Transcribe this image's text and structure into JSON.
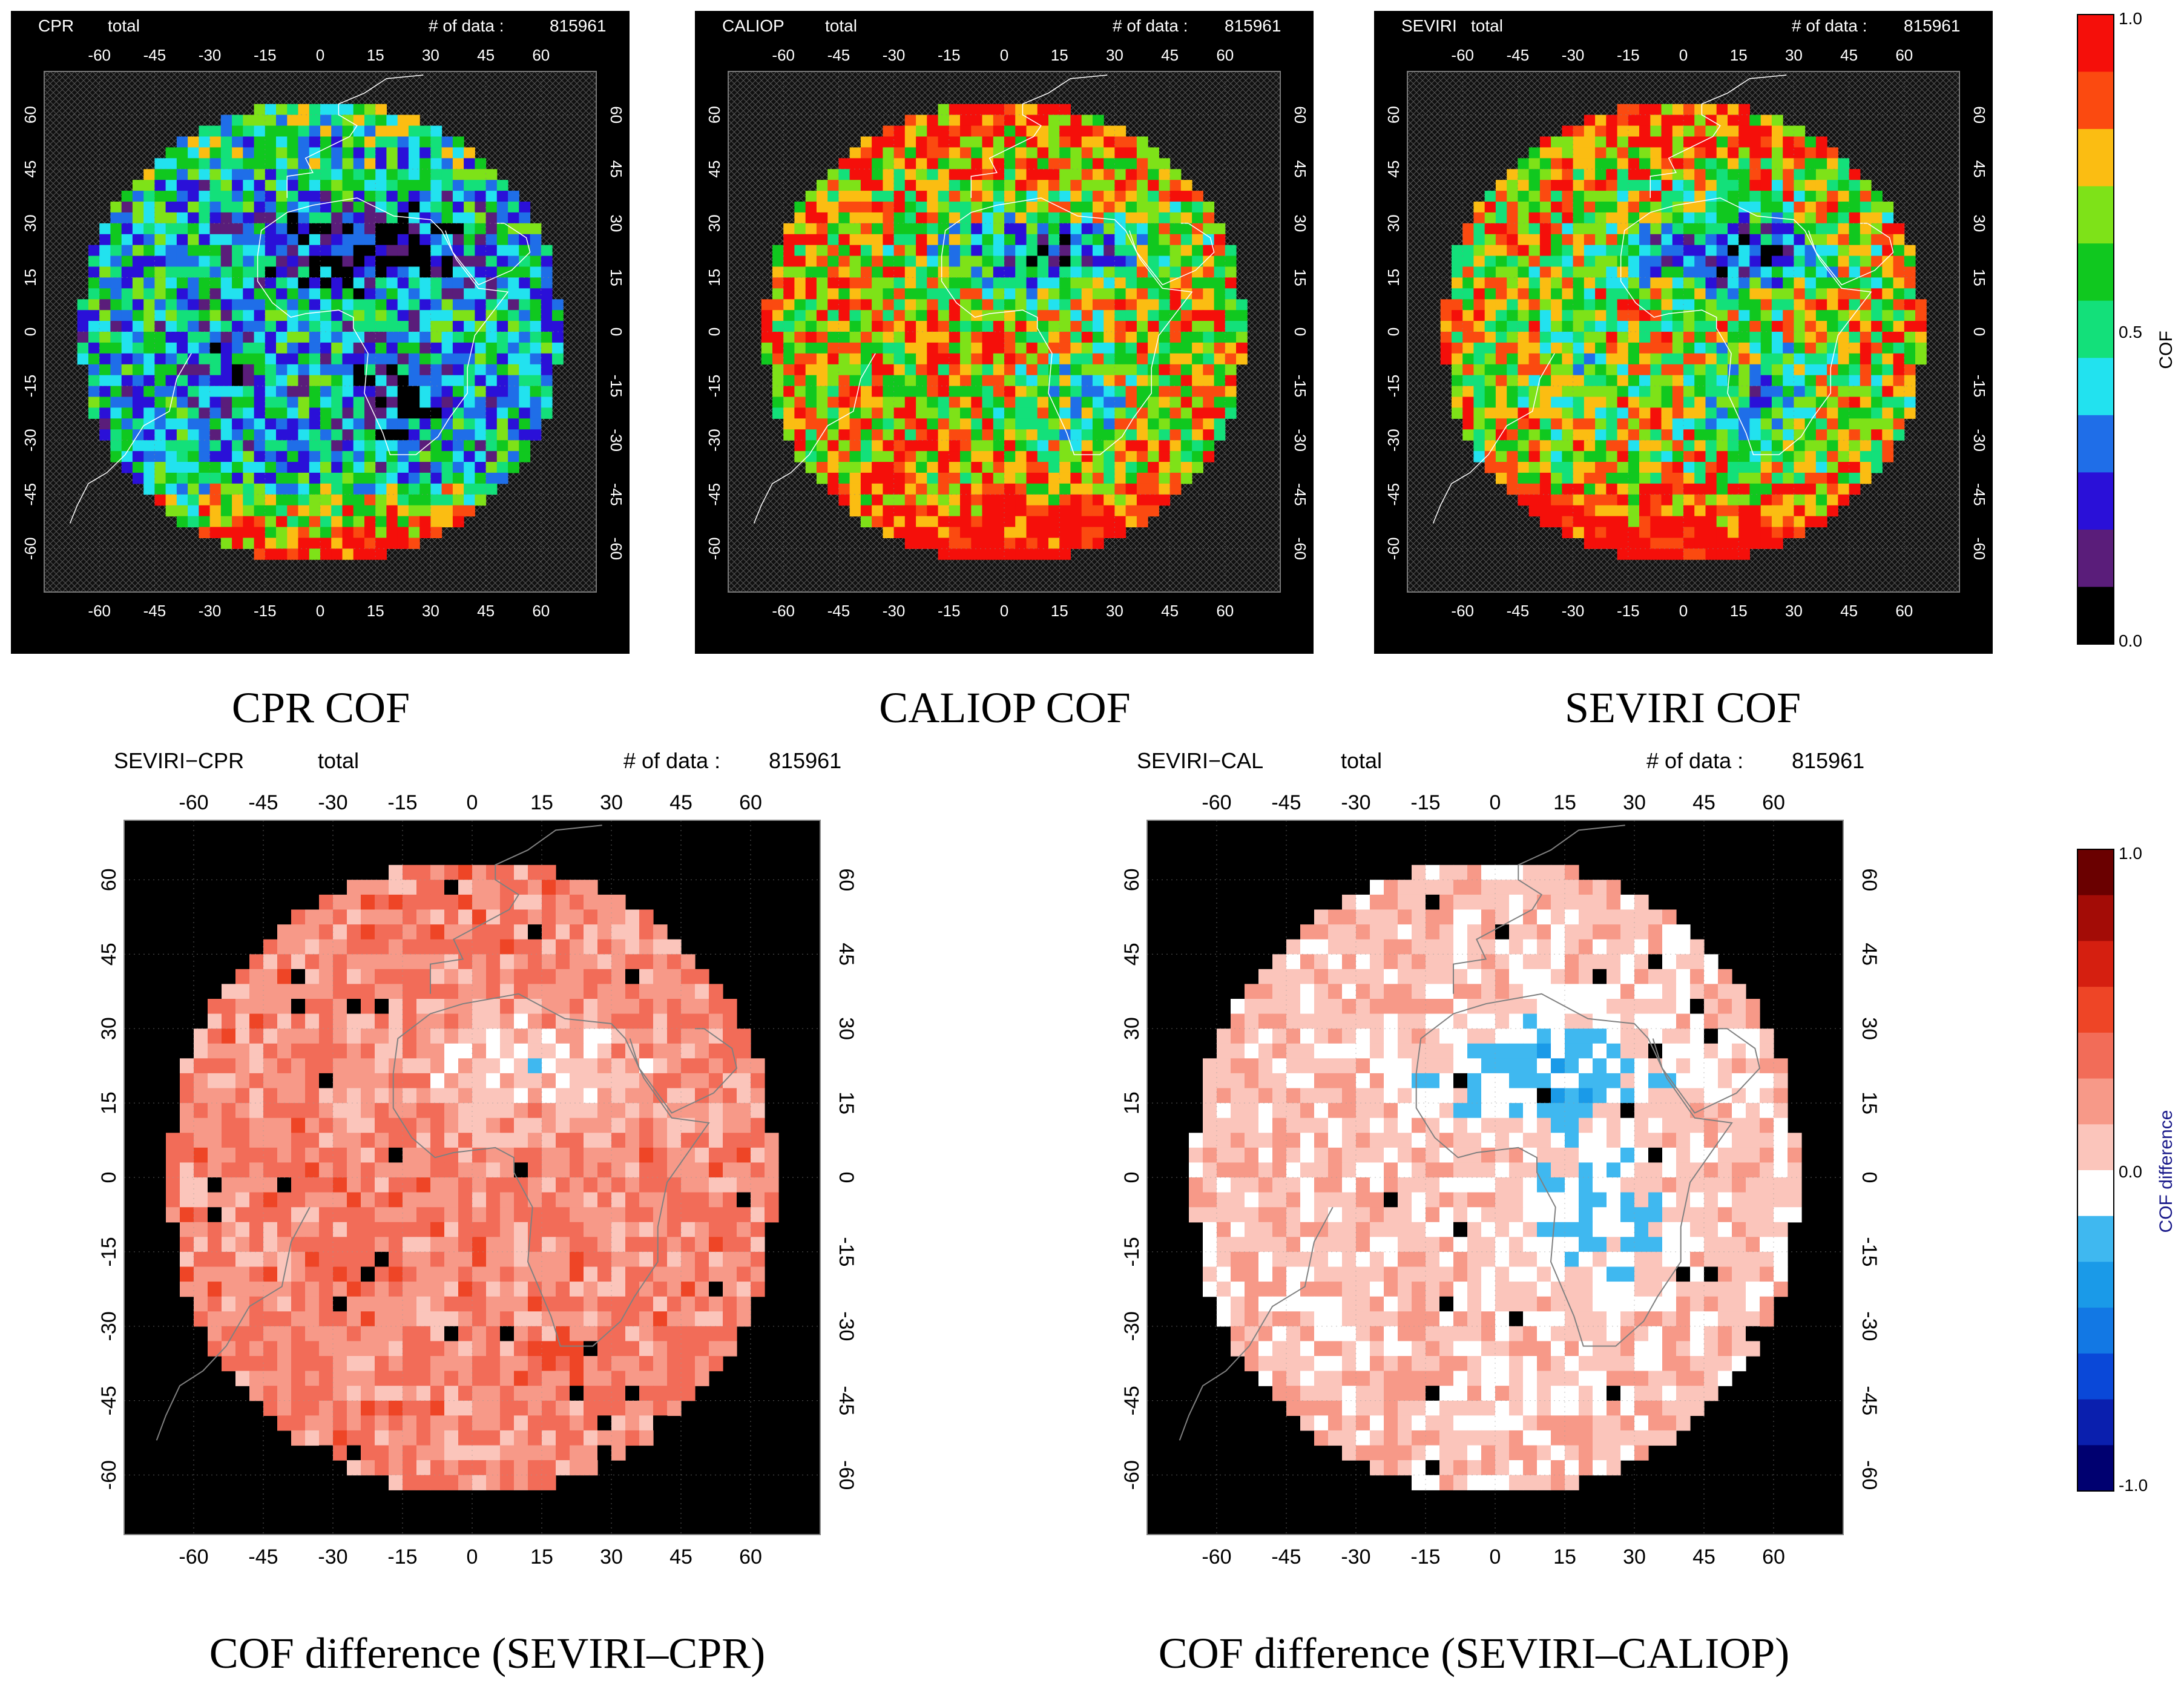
{
  "colors": {
    "cof_scale": [
      "#000000",
      "#5a1d7a",
      "#2a10d8",
      "#1f6ee8",
      "#22e2ef",
      "#13e07a",
      "#10c81f",
      "#7ee218",
      "#fbbd12",
      "#fb4a10",
      "#f50f0a"
    ],
    "diff_scale": [
      "#000070",
      "#0a1fae",
      "#0a48d8",
      "#1278e4",
      "#1a9ae8",
      "#3fb8f0",
      "#ffffff",
      "#fbc5bb",
      "#f79988",
      "#f26c58",
      "#ee4526",
      "#d51f10",
      "#a30c06",
      "#6a0000"
    ],
    "ocean_black": "#000000",
    "coast_line": "#ffffff",
    "coast_line_diff": "#808080"
  },
  "maps": [
    {
      "id": "cpr",
      "header_left": "CPR",
      "header_mid": "total",
      "count_label": "# of data :",
      "count_value": "815961",
      "caption": "CPR COF",
      "chart_data": {
        "type": "heatmap",
        "variable": "COF",
        "range": [
          0.0,
          1.0
        ],
        "lon_ticks": [
          "-60",
          "-45",
          "-30",
          "-15",
          "0",
          "15",
          "30",
          "45",
          "60"
        ],
        "lat_ticks": [
          "60",
          "45",
          "30",
          "15",
          "0",
          "-15",
          "-30",
          "-45",
          "-60"
        ]
      }
    },
    {
      "id": "caliop",
      "header_left": "CALIOP",
      "header_mid": "total",
      "count_label": "# of data :",
      "count_value": "815961",
      "caption": "CALIOP COF",
      "chart_data": {
        "type": "heatmap",
        "variable": "COF",
        "range": [
          0.0,
          1.0
        ],
        "lon_ticks": [
          "-60",
          "-45",
          "-30",
          "-15",
          "0",
          "15",
          "30",
          "45",
          "60"
        ],
        "lat_ticks": [
          "60",
          "45",
          "30",
          "15",
          "0",
          "-15",
          "-30",
          "-45",
          "-60"
        ]
      }
    },
    {
      "id": "seviri",
      "header_left": "SEVIRI",
      "header_mid": "total",
      "count_label": "# of data :",
      "count_value": "815961",
      "caption": "SEVIRI COF",
      "chart_data": {
        "type": "heatmap",
        "variable": "COF",
        "range": [
          0.0,
          1.0
        ],
        "lon_ticks": [
          "-60",
          "-45",
          "-30",
          "-15",
          "0",
          "15",
          "30",
          "45",
          "60"
        ],
        "lat_ticks": [
          "60",
          "45",
          "30",
          "15",
          "0",
          "-15",
          "-30",
          "-45",
          "-60"
        ]
      }
    },
    {
      "id": "diff_cpr",
      "header_left": "SEVIRI−CPR",
      "header_mid": "total",
      "count_label": "# of data :",
      "count_value": "815961",
      "caption": "COF difference (SEVIRI–CPR)",
      "chart_data": {
        "type": "heatmap",
        "variable": "COF difference",
        "range": [
          -1.0,
          1.0
        ],
        "lon_ticks": [
          "-60",
          "-45",
          "-30",
          "-15",
          "0",
          "15",
          "30",
          "45",
          "60"
        ],
        "lat_ticks": [
          "60",
          "45",
          "30",
          "15",
          "0",
          "-15",
          "-30",
          "-45",
          "-60"
        ]
      }
    },
    {
      "id": "diff_cal",
      "header_left": "SEVIRI−CAL",
      "header_mid": "total",
      "count_label": "# of data :",
      "count_value": "815961",
      "caption": "COF difference (SEVIRI–CALIOP)",
      "chart_data": {
        "type": "heatmap",
        "variable": "COF difference",
        "range": [
          -1.0,
          1.0
        ],
        "lon_ticks": [
          "-60",
          "-45",
          "-30",
          "-15",
          "0",
          "15",
          "30",
          "45",
          "60"
        ],
        "lat_ticks": [
          "60",
          "45",
          "30",
          "15",
          "0",
          "-15",
          "-30",
          "-45",
          "-60"
        ]
      }
    }
  ],
  "colorbar_cof": {
    "label": "COF",
    "ticks": [
      "1.0",
      "0.5",
      "0.0"
    ],
    "chart_data": {
      "type": "colorbar",
      "min": 0.0,
      "max": 1.0,
      "ticks": [
        1.0,
        0.5,
        0.0
      ],
      "label": "COF"
    }
  },
  "colorbar_diff": {
    "label": "COF difference",
    "ticks": [
      "1.0",
      "0.0",
      "-1.0"
    ],
    "chart_data": {
      "type": "colorbar",
      "min": -1.0,
      "max": 1.0,
      "ticks": [
        1.0,
        0.0,
        -1.0
      ],
      "label": "COF difference"
    }
  }
}
